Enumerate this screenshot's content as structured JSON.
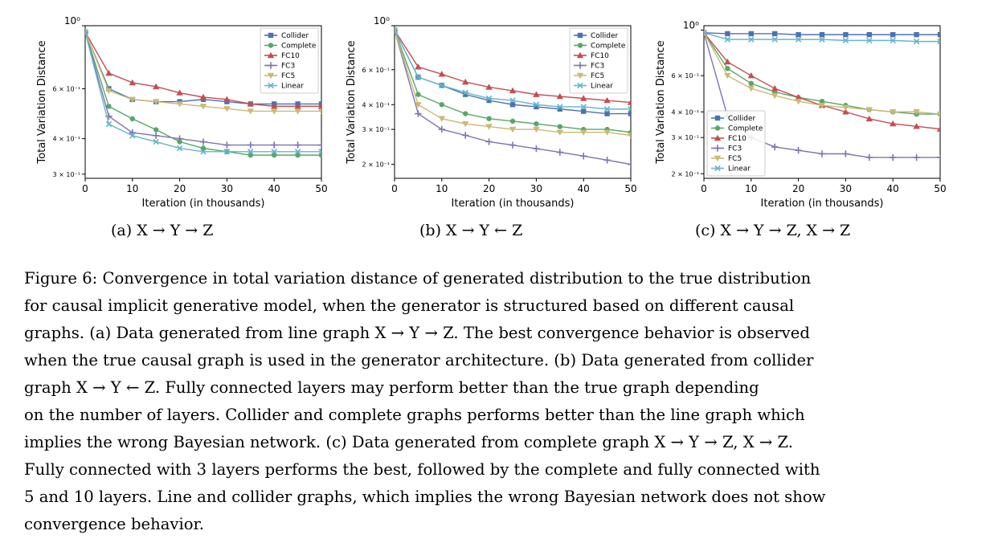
{
  "chart_data": [
    {
      "type": "line",
      "subcaption": "(a) X → Y → Z",
      "xlabel": "Iteration (in thousands)",
      "ylabel": "Total Variation Distance",
      "y_scale": "log",
      "xlim": [
        0,
        50
      ],
      "ylim": [
        0.29,
        1.0
      ],
      "x_ticks": [
        "0",
        "10",
        "20",
        "30",
        "40",
        "50"
      ],
      "y_ticks": [
        {
          "value": 1.0,
          "label": "10⁰"
        },
        {
          "value": 0.6,
          "label": "6 × 10⁻¹"
        },
        {
          "value": 0.4,
          "label": "4 × 10⁻¹"
        },
        {
          "value": 0.3,
          "label": "3 × 10⁻¹"
        }
      ],
      "legend_position": "top-right",
      "x": [
        0,
        5,
        10,
        15,
        20,
        25,
        30,
        35,
        40,
        45,
        50
      ],
      "series": [
        {
          "name": "Collider",
          "color": "#4c72b0",
          "marker": "square",
          "values": [
            0.95,
            0.6,
            0.55,
            0.54,
            0.54,
            0.55,
            0.54,
            0.53,
            0.53,
            0.53,
            0.53
          ]
        },
        {
          "name": "Complete",
          "color": "#55a868",
          "marker": "circle",
          "values": [
            0.95,
            0.52,
            0.47,
            0.43,
            0.39,
            0.37,
            0.36,
            0.35,
            0.35,
            0.35,
            0.35
          ]
        },
        {
          "name": "FC10",
          "color": "#c44e52",
          "marker": "triangle",
          "values": [
            0.95,
            0.68,
            0.63,
            0.61,
            0.58,
            0.56,
            0.55,
            0.53,
            0.52,
            0.52,
            0.52
          ]
        },
        {
          "name": "FC3",
          "color": "#8172b2",
          "marker": "plus",
          "values": [
            0.95,
            0.48,
            0.42,
            0.41,
            0.4,
            0.39,
            0.38,
            0.38,
            0.38,
            0.38,
            0.38
          ]
        },
        {
          "name": "FC5",
          "color": "#ccb974",
          "marker": "triangle-down",
          "values": [
            0.95,
            0.59,
            0.55,
            0.54,
            0.53,
            0.52,
            0.51,
            0.5,
            0.5,
            0.5,
            0.5
          ]
        },
        {
          "name": "Linear",
          "color": "#64b5cd",
          "marker": "cross",
          "values": [
            0.95,
            0.45,
            0.41,
            0.39,
            0.37,
            0.36,
            0.36,
            0.36,
            0.36,
            0.36,
            0.36
          ]
        }
      ]
    },
    {
      "type": "line",
      "subcaption": "(b) X → Y ← Z",
      "xlabel": "Iteration (in thousands)",
      "ylabel": "Total Variation Distance",
      "y_scale": "log",
      "xlim": [
        0,
        50
      ],
      "ylim": [
        0.17,
        1.0
      ],
      "x_ticks": [
        "0",
        "10",
        "20",
        "30",
        "40",
        "50"
      ],
      "y_ticks": [
        {
          "value": 1.0,
          "label": "10⁰"
        },
        {
          "value": 0.6,
          "label": "6 × 10⁻¹"
        },
        {
          "value": 0.4,
          "label": "4 × 10⁻¹"
        },
        {
          "value": 0.3,
          "label": "3 × 10⁻¹"
        },
        {
          "value": 0.2,
          "label": "2 × 10⁻¹"
        }
      ],
      "legend_position": "top-right",
      "x": [
        0,
        5,
        10,
        15,
        20,
        25,
        30,
        35,
        40,
        45,
        50
      ],
      "series": [
        {
          "name": "Collider",
          "color": "#4c72b0",
          "marker": "square",
          "values": [
            0.95,
            0.55,
            0.5,
            0.45,
            0.42,
            0.4,
            0.39,
            0.38,
            0.37,
            0.36,
            0.36
          ]
        },
        {
          "name": "Complete",
          "color": "#55a868",
          "marker": "circle",
          "values": [
            0.95,
            0.45,
            0.4,
            0.36,
            0.34,
            0.33,
            0.32,
            0.31,
            0.3,
            0.3,
            0.29
          ]
        },
        {
          "name": "FC10",
          "color": "#c44e52",
          "marker": "triangle",
          "values": [
            0.95,
            0.62,
            0.57,
            0.52,
            0.49,
            0.47,
            0.45,
            0.44,
            0.43,
            0.42,
            0.41
          ]
        },
        {
          "name": "FC3",
          "color": "#8172b2",
          "marker": "plus",
          "values": [
            0.95,
            0.36,
            0.3,
            0.28,
            0.26,
            0.25,
            0.24,
            0.23,
            0.22,
            0.21,
            0.2
          ]
        },
        {
          "name": "FC5",
          "color": "#ccb974",
          "marker": "triangle-down",
          "values": [
            0.95,
            0.4,
            0.34,
            0.32,
            0.31,
            0.3,
            0.3,
            0.29,
            0.29,
            0.29,
            0.28
          ]
        },
        {
          "name": "Linear",
          "color": "#64b5cd",
          "marker": "cross",
          "values": [
            0.95,
            0.55,
            0.5,
            0.46,
            0.43,
            0.42,
            0.4,
            0.39,
            0.39,
            0.38,
            0.38
          ]
        }
      ]
    },
    {
      "type": "line",
      "subcaption": "(c) X → Y → Z, X → Z",
      "xlabel": "Iteration (in thousands)",
      "ylabel": "Total Variation Distance",
      "y_scale": "log",
      "xlim": [
        0,
        50
      ],
      "ylim": [
        0.19,
        1.05
      ],
      "x_ticks": [
        "0",
        "10",
        "20",
        "30",
        "40",
        "50"
      ],
      "y_ticks": [
        {
          "value": 1.0,
          "label": "10⁰"
        },
        {
          "value": 0.6,
          "label": "6 × 10⁻¹"
        },
        {
          "value": 0.4,
          "label": "4 × 10⁻¹"
        },
        {
          "value": 0.3,
          "label": "3 × 10⁻¹"
        },
        {
          "value": 0.2,
          "label": "2 × 10⁻¹"
        }
      ],
      "legend_position": "lower-left",
      "x": [
        0,
        5,
        10,
        15,
        20,
        25,
        30,
        35,
        40,
        45,
        50
      ],
      "series": [
        {
          "name": "Collider",
          "color": "#4c72b0",
          "marker": "square",
          "values": [
            0.97,
            0.96,
            0.96,
            0.96,
            0.95,
            0.95,
            0.95,
            0.95,
            0.95,
            0.95,
            0.95
          ]
        },
        {
          "name": "Complete",
          "color": "#55a868",
          "marker": "circle",
          "values": [
            0.97,
            0.65,
            0.55,
            0.5,
            0.47,
            0.45,
            0.43,
            0.41,
            0.4,
            0.39,
            0.39
          ]
        },
        {
          "name": "FC10",
          "color": "#c44e52",
          "marker": "triangle",
          "values": [
            0.97,
            0.7,
            0.6,
            0.52,
            0.47,
            0.43,
            0.4,
            0.37,
            0.35,
            0.34,
            0.33
          ]
        },
        {
          "name": "FC3",
          "color": "#8172b2",
          "marker": "plus",
          "values": [
            0.97,
            0.38,
            0.3,
            0.27,
            0.26,
            0.25,
            0.25,
            0.24,
            0.24,
            0.24,
            0.24
          ]
        },
        {
          "name": "FC5",
          "color": "#ccb974",
          "marker": "triangle-down",
          "values": [
            0.97,
            0.6,
            0.52,
            0.48,
            0.45,
            0.43,
            0.42,
            0.41,
            0.4,
            0.4,
            0.39
          ]
        },
        {
          "name": "Linear",
          "color": "#64b5cd",
          "marker": "cross",
          "values": [
            0.97,
            0.9,
            0.9,
            0.9,
            0.9,
            0.9,
            0.89,
            0.89,
            0.89,
            0.88,
            0.88
          ]
        }
      ]
    }
  ],
  "caption_lines": [
    "Figure 6: Convergence in total variation distance of generated distribution to the true distribution",
    "for causal implicit generative model, when the generator is structured based on different causal",
    "graphs. (a) Data generated from line graph X → Y → Z. The best convergence behavior is observed",
    "when the true causal graph is used in the generator architecture. (b) Data generated from collider",
    "graph X → Y ← Z. Fully connected layers may perform better than the true graph depending",
    "on the number of layers. Collider and complete graphs performs better than the line graph which",
    "implies the wrong Bayesian network. (c) Data generated from complete graph X → Y → Z, X → Z.",
    "Fully connected with 3 layers performs the best, followed by the complete and fully connected with",
    "5 and 10 layers. Line and collider graphs, which implies the wrong Bayesian network does not show",
    "convergence behavior."
  ]
}
